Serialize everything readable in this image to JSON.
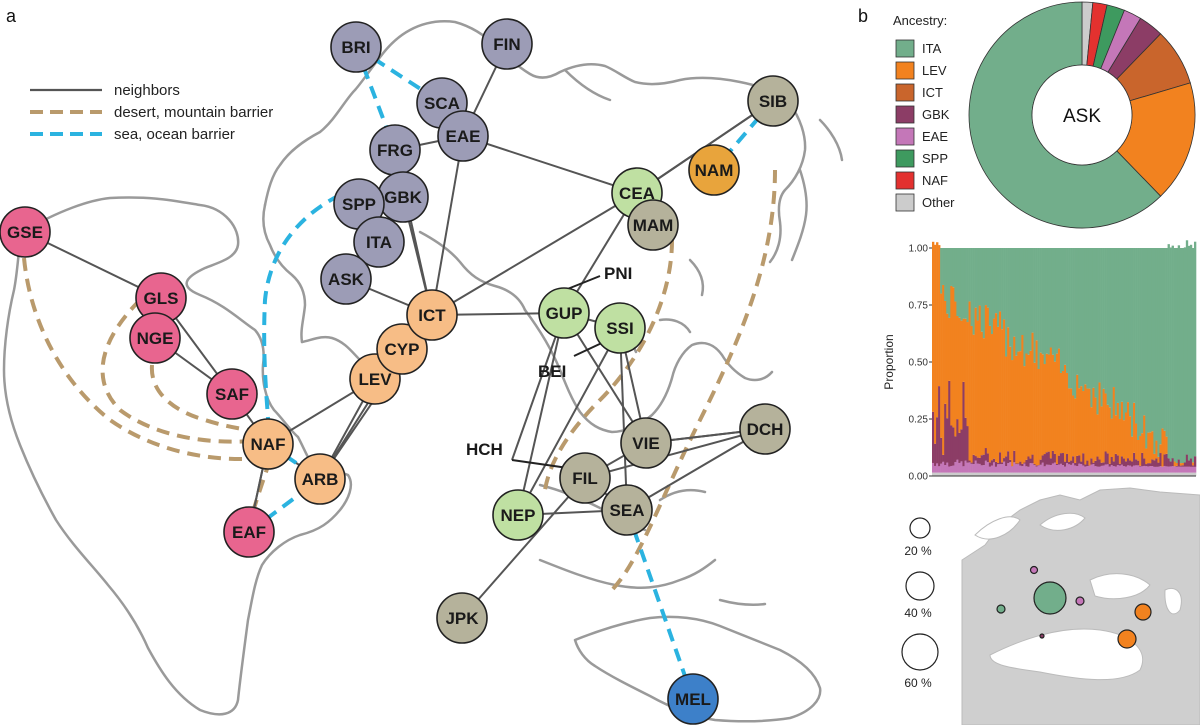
{
  "panel_a": {
    "letter": "a",
    "legend": [
      {
        "label": "neighbors",
        "style": "solid",
        "color": "#555555"
      },
      {
        "label": "desert, mountain barrier",
        "style": "dash-brown",
        "color": "#b99a6c"
      },
      {
        "label": "sea, ocean barrier",
        "style": "dash-blue",
        "color": "#2bb3e0"
      }
    ],
    "colors": {
      "europe": "#9c9cb6",
      "africa": "#e8658f",
      "mideast": "#f7bd86",
      "eastasia": "#b5b29b",
      "southasia": "#bfe0a2",
      "nam": "#e8a43c",
      "mel": "#3d80c9"
    },
    "nodes": [
      {
        "id": "BRI",
        "label": "BRI",
        "group": "europe"
      },
      {
        "id": "FIN",
        "label": "FIN",
        "group": "europe"
      },
      {
        "id": "SCA",
        "label": "SCA",
        "group": "europe"
      },
      {
        "id": "EAE",
        "label": "EAE",
        "group": "europe"
      },
      {
        "id": "FRG",
        "label": "FRG",
        "group": "europe"
      },
      {
        "id": "GBK",
        "label": "GBK",
        "group": "europe"
      },
      {
        "id": "SPP",
        "label": "SPP",
        "group": "europe"
      },
      {
        "id": "ITA",
        "label": "ITA",
        "group": "europe"
      },
      {
        "id": "ASK",
        "label": "ASK",
        "group": "europe"
      },
      {
        "id": "GSE",
        "label": "GSE",
        "group": "africa"
      },
      {
        "id": "GLS",
        "label": "GLS",
        "group": "africa"
      },
      {
        "id": "NGE",
        "label": "NGE",
        "group": "africa"
      },
      {
        "id": "SAF",
        "label": "SAF",
        "group": "africa"
      },
      {
        "id": "EAF",
        "label": "EAF",
        "group": "africa"
      },
      {
        "id": "NAF",
        "label": "NAF",
        "group": "mideast"
      },
      {
        "id": "ARB",
        "label": "ARB",
        "group": "mideast"
      },
      {
        "id": "LEV",
        "label": "LEV",
        "group": "mideast"
      },
      {
        "id": "CYP",
        "label": "CYP",
        "group": "mideast"
      },
      {
        "id": "ICT",
        "label": "ICT",
        "group": "mideast"
      },
      {
        "id": "CEA",
        "label": "CEA",
        "group": "southasia"
      },
      {
        "id": "GUP",
        "label": "GUP",
        "group": "southasia"
      },
      {
        "id": "SSI",
        "label": "SSI",
        "group": "southasia"
      },
      {
        "id": "NEP",
        "label": "NEP",
        "group": "southasia"
      },
      {
        "id": "MAM",
        "label": "MAM",
        "group": "eastasia"
      },
      {
        "id": "NAM",
        "label": "NAM",
        "group": "nam"
      },
      {
        "id": "SIB",
        "label": "SIB",
        "group": "eastasia"
      },
      {
        "id": "VIE",
        "label": "VIE",
        "group": "eastasia"
      },
      {
        "id": "DCH",
        "label": "DCH",
        "group": "eastasia"
      },
      {
        "id": "FIL",
        "label": "FIL",
        "group": "eastasia"
      },
      {
        "id": "SEA",
        "label": "SEA",
        "group": "eastasia"
      },
      {
        "id": "JPK",
        "label": "JPK",
        "group": "eastasia"
      },
      {
        "id": "MEL",
        "label": "MEL",
        "group": "mel"
      }
    ],
    "callouts": [
      {
        "id": "PNI",
        "label": "PNI",
        "node": "GUP"
      },
      {
        "id": "BEI",
        "label": "BEI",
        "node": "SSI"
      },
      {
        "id": "HCH",
        "label": "HCH",
        "node": "FIL"
      }
    ],
    "edges": [
      [
        "GSE",
        "GLS"
      ],
      [
        "NGE",
        "SAF"
      ],
      [
        "SAF",
        "NAF"
      ],
      [
        "NAF",
        "EAF"
      ],
      [
        "NAF",
        "ARB"
      ],
      [
        "NAF",
        "LEV"
      ],
      [
        "ARB",
        "LEV"
      ],
      [
        "ARB",
        "CYP"
      ],
      [
        "ICT",
        "ASK"
      ],
      [
        "ICT",
        "GBK"
      ],
      [
        "ICT",
        "EAE"
      ],
      [
        "ICT",
        "GUP"
      ],
      [
        "ICT",
        "CEA"
      ],
      [
        "ICT",
        "FRG"
      ],
      [
        "EAE",
        "FIN"
      ],
      [
        "EAE",
        "CEA"
      ],
      [
        "CEA",
        "SIB"
      ],
      [
        "CEA",
        "GUP"
      ],
      [
        "SSI",
        "NEP"
      ],
      [
        "GUP",
        "VIE"
      ],
      [
        "GUP",
        "HCH_END"
      ],
      [
        "SSI",
        "SEA"
      ],
      [
        "FIL",
        "DCH"
      ],
      [
        "VIE",
        "DCH"
      ],
      [
        "FIL",
        "VIE"
      ],
      [
        "SEA",
        "DCH"
      ],
      [
        "FIL",
        "JPK"
      ],
      [
        "SEA",
        "NEP"
      ],
      [
        "EAE",
        "FRG"
      ],
      [
        "SCA",
        "EAE"
      ],
      [
        "SPP",
        "GBK"
      ],
      [
        "ITA",
        "GBK"
      ]
    ],
    "sea_barriers": [
      [
        "BRI",
        "FRG"
      ],
      [
        "BRI",
        "SCA"
      ],
      [
        "SIB",
        "NAM"
      ],
      [
        "NAF",
        "ARB"
      ],
      [
        "EAF",
        "ARB"
      ],
      [
        "SEA",
        "MEL"
      ]
    ]
  },
  "panel_b": {
    "letter": "b",
    "ancestry_title": "Ancestry:",
    "donut_label": "ASK",
    "ancestry": [
      {
        "label": "ITA",
        "color": "#72ae8b",
        "value": 0.61
      },
      {
        "label": "LEV",
        "color": "#f2821f",
        "value": 0.17
      },
      {
        "label": "ICT",
        "color": "#c9652c",
        "value": 0.08
      },
      {
        "label": "GBK",
        "color": "#8c3d66",
        "value": 0.035
      },
      {
        "label": "EAE",
        "color": "#c477b8",
        "value": 0.025
      },
      {
        "label": "SPP",
        "color": "#3e9a5f",
        "value": 0.025
      },
      {
        "label": "NAF",
        "color": "#e3312f",
        "value": 0.02
      },
      {
        "label": "Other",
        "color": "#cccccc",
        "value": 0.015
      }
    ],
    "stacked": {
      "ylabel": "Proportion",
      "yticks": [
        "0.00",
        "0.25",
        "0.50",
        "0.75",
        "1.00"
      ],
      "tick_values": [
        0,
        0.25,
        0.5,
        0.75,
        1.0
      ]
    },
    "map_sizes": [
      {
        "label": "20 %",
        "value": 20
      },
      {
        "label": "40 %",
        "value": 40
      },
      {
        "label": "60 %",
        "value": 60
      }
    ]
  }
}
